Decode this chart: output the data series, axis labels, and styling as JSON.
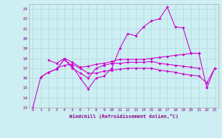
{
  "xlabel": "Windchill (Refroidissement éolien,°C)",
  "background_color": "#cdeef2",
  "grid_color": "#aad4da",
  "line_color": "#cc00cc",
  "x_values": [
    0,
    1,
    2,
    3,
    4,
    5,
    6,
    7,
    8,
    9,
    10,
    11,
    12,
    13,
    14,
    15,
    16,
    17,
    18,
    19,
    20,
    21,
    22,
    23
  ],
  "ylim": [
    13,
    23.5
  ],
  "xlim": [
    -0.5,
    23.5
  ],
  "yticks": [
    13,
    14,
    15,
    16,
    17,
    18,
    19,
    20,
    21,
    22,
    23
  ],
  "xticks": [
    0,
    1,
    2,
    3,
    4,
    5,
    6,
    7,
    8,
    9,
    10,
    11,
    12,
    13,
    14,
    15,
    16,
    17,
    18,
    19,
    20,
    21,
    22,
    23
  ],
  "curves": [
    [
      13.0,
      16.1,
      16.6,
      16.9,
      17.9,
      17.2,
      16.0,
      14.9,
      16.0,
      16.2,
      17.0,
      19.0,
      20.5,
      20.3,
      21.2,
      21.8,
      22.0,
      23.2,
      21.2,
      21.1,
      18.5,
      18.5,
      15.0,
      17.0
    ],
    [
      null,
      null,
      17.8,
      17.5,
      18.0,
      17.6,
      17.1,
      17.2,
      17.4,
      17.5,
      17.7,
      17.9,
      17.9,
      17.9,
      17.9,
      18.0,
      18.1,
      18.2,
      18.3,
      18.4,
      18.5,
      18.5,
      null,
      null
    ],
    [
      null,
      null,
      null,
      17.0,
      17.3,
      17.4,
      17.0,
      16.5,
      16.5,
      16.7,
      16.8,
      16.9,
      17.0,
      17.0,
      17.0,
      17.0,
      16.8,
      16.7,
      16.6,
      16.4,
      16.3,
      16.2,
      15.5,
      17.0
    ],
    [
      null,
      16.1,
      16.6,
      16.9,
      17.9,
      17.0,
      16.5,
      16.0,
      17.0,
      17.3,
      17.5,
      17.5,
      17.6,
      17.6,
      17.6,
      17.7,
      17.5,
      17.4,
      17.3,
      17.2,
      17.1,
      17.0,
      null,
      null
    ]
  ]
}
